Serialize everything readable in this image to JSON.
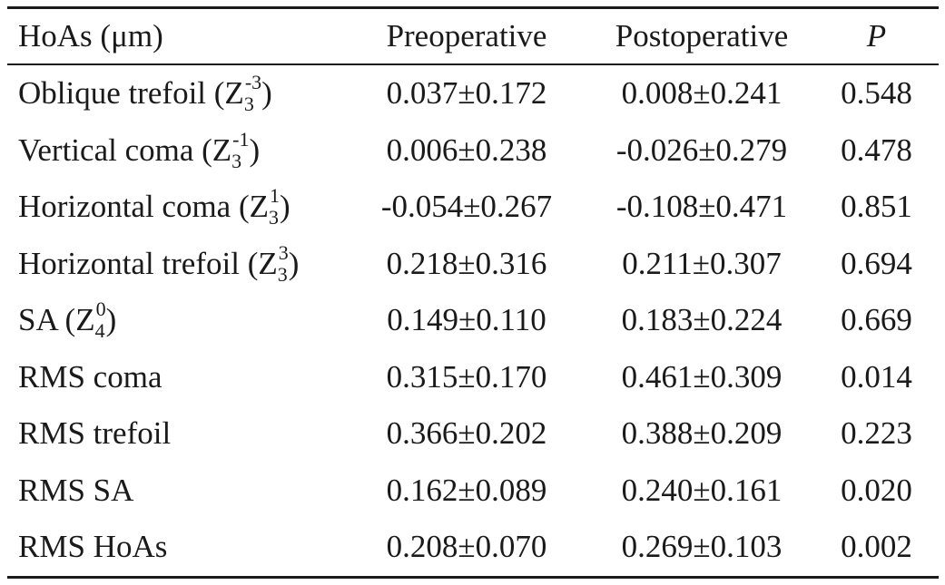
{
  "header": {
    "col0": "HoAs (μm)",
    "col1": "Preoperative",
    "col2": "Postoperative",
    "col3": "P"
  },
  "rows": [
    {
      "name_prefix": "Oblique trefoil (Z",
      "sub": "3",
      "sup": "-3",
      "name_suffix": ")",
      "pre": "0.037±0.172",
      "post": "0.008±0.241",
      "p": "0.548"
    },
    {
      "name_prefix": "Vertical coma (Z",
      "sub": "3",
      "sup": "-1",
      "name_suffix": ")",
      "pre": "0.006±0.238",
      "post": "-0.026±0.279",
      "p": "0.478"
    },
    {
      "name_prefix": "Horizontal coma (Z",
      "sub": "3",
      "sup": "1",
      "name_suffix": ")",
      "pre": "-0.054±0.267",
      "post": "-0.108±0.471",
      "p": "0.851"
    },
    {
      "name_prefix": "Horizontal trefoil (Z",
      "sub": "3",
      "sup": "3",
      "name_suffix": ")",
      "pre": "0.218±0.316",
      "post": "0.211±0.307",
      "p": "0.694"
    },
    {
      "name_prefix": "SA (Z",
      "sub": "4",
      "sup": "0",
      "name_suffix": ")",
      "pre": "0.149±0.110",
      "post": "0.183±0.224",
      "p": "0.669"
    },
    {
      "name": "RMS coma",
      "pre": "0.315±0.170",
      "post": "0.461±0.309",
      "p": "0.014"
    },
    {
      "name": "RMS trefoil",
      "pre": "0.366±0.202",
      "post": "0.388±0.209",
      "p": "0.223"
    },
    {
      "name": "RMS SA",
      "pre": "0.162±0.089",
      "post": "0.240±0.161",
      "p": "0.020"
    },
    {
      "name": "RMS HoAs",
      "pre": "0.208±0.070",
      "post": "0.269±0.103",
      "p": "0.002"
    }
  ]
}
